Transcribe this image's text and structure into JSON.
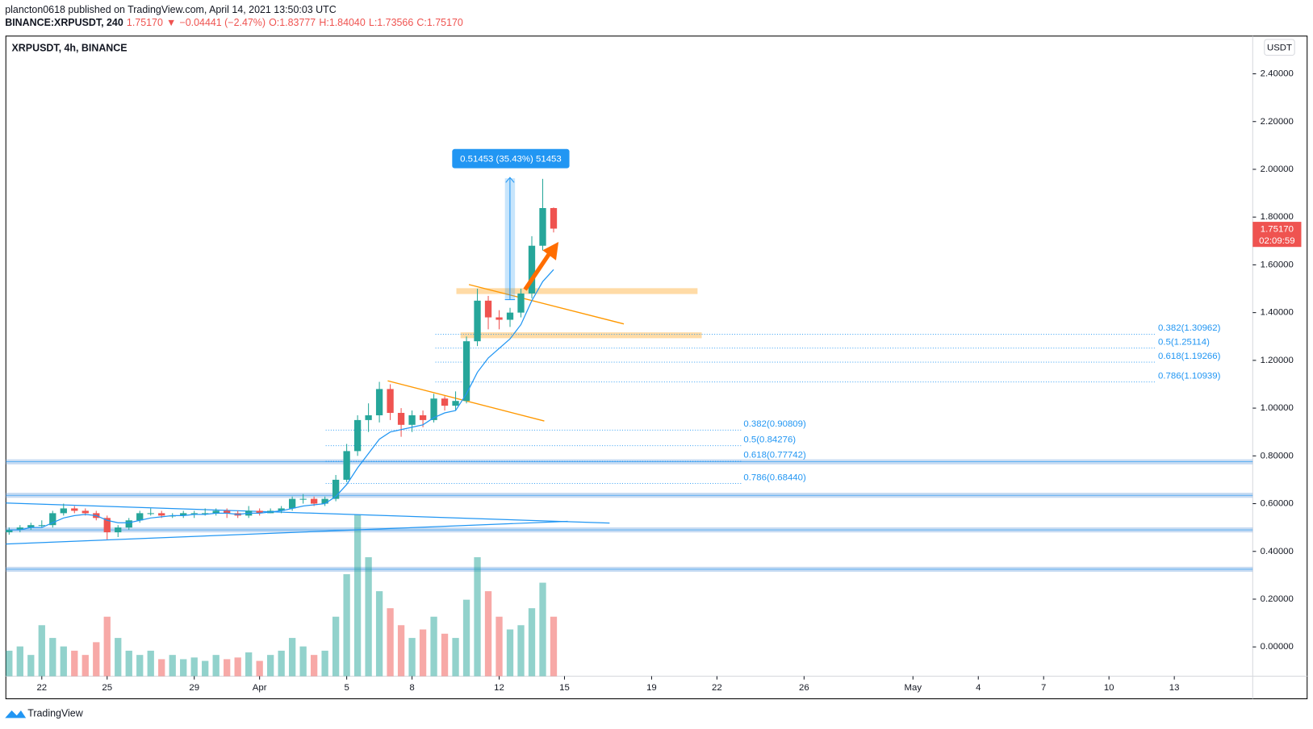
{
  "header": {
    "byline": "plancton0618 published on TradingView.com, April 14, 2021 13:50:03 UTC",
    "quote_parts": [
      "BINANCE:XRPUSDT, 240",
      "1.75170",
      "▼",
      "−0.04441 (−2.47%)",
      "O:1.83777",
      "H:1.84040",
      "L:1.73566",
      "C:1.75170"
    ]
  },
  "chart_data": {
    "type": "candlestick",
    "legend": "XRPUSDT, 4h, BINANCE",
    "currency": "USDT",
    "up_color": "#26a69a",
    "down_color": "#ef5350",
    "x": [
      -1.5,
      -1,
      -0.5,
      0,
      0.5,
      1,
      1.5,
      2,
      2.5,
      3,
      3.5,
      4,
      4.5,
      5,
      5.5,
      6,
      6.5,
      7,
      7.5,
      8,
      8.5,
      9,
      9.5,
      10,
      10.5,
      11,
      11.5,
      12,
      12.5,
      13,
      13.5,
      14,
      14.5,
      15,
      15.5,
      16,
      16.5,
      17,
      17.5,
      18,
      18.5,
      19,
      19.5,
      20,
      20.5,
      21,
      21.5,
      22,
      22.5,
      23,
      23.5
    ],
    "open": [
      0.48,
      0.49,
      0.5,
      0.51,
      0.51,
      0.56,
      0.58,
      0.57,
      0.56,
      0.54,
      0.48,
      0.5,
      0.53,
      0.56,
      0.56,
      0.55,
      0.55,
      0.56,
      0.56,
      0.56,
      0.57,
      0.56,
      0.55,
      0.57,
      0.56,
      0.57,
      0.58,
      0.62,
      0.62,
      0.6,
      0.62,
      0.7,
      0.82,
      0.95,
      0.97,
      1.08,
      0.98,
      0.93,
      0.97,
      0.95,
      1.04,
      1.01,
      1.03,
      1.28,
      1.45,
      1.38,
      1.37,
      1.4,
      1.48,
      1.68,
      1.83777
    ],
    "high": [
      0.5,
      0.51,
      0.52,
      0.53,
      0.57,
      0.6,
      0.59,
      0.58,
      0.57,
      0.55,
      0.51,
      0.54,
      0.57,
      0.58,
      0.57,
      0.56,
      0.57,
      0.57,
      0.58,
      0.58,
      0.58,
      0.57,
      0.59,
      0.58,
      0.58,
      0.59,
      0.63,
      0.64,
      0.63,
      0.63,
      0.72,
      0.85,
      0.97,
      1.02,
      1.11,
      1.1,
      1.0,
      0.99,
      0.99,
      1.06,
      1.05,
      1.07,
      1.3,
      1.5,
      1.47,
      1.41,
      1.42,
      1.5,
      1.72,
      1.96,
      1.8404
    ],
    "low": [
      0.47,
      0.48,
      0.49,
      0.5,
      0.5,
      0.55,
      0.56,
      0.55,
      0.53,
      0.45,
      0.46,
      0.49,
      0.52,
      0.55,
      0.54,
      0.54,
      0.54,
      0.54,
      0.55,
      0.55,
      0.54,
      0.54,
      0.54,
      0.55,
      0.56,
      0.56,
      0.57,
      0.6,
      0.59,
      0.59,
      0.61,
      0.69,
      0.8,
      0.9,
      0.94,
      0.95,
      0.88,
      0.9,
      0.92,
      0.94,
      0.99,
      0.99,
      1.02,
      1.26,
      1.33,
      1.33,
      1.34,
      1.38,
      1.46,
      1.66,
      1.73566
    ],
    "close": [
      0.49,
      0.5,
      0.51,
      0.51,
      0.56,
      0.58,
      0.57,
      0.56,
      0.54,
      0.48,
      0.5,
      0.53,
      0.56,
      0.56,
      0.55,
      0.55,
      0.56,
      0.56,
      0.56,
      0.57,
      0.56,
      0.55,
      0.57,
      0.56,
      0.57,
      0.58,
      0.62,
      0.62,
      0.6,
      0.62,
      0.7,
      0.82,
      0.95,
      0.97,
      1.08,
      0.98,
      0.93,
      0.97,
      0.95,
      1.04,
      1.01,
      1.03,
      1.28,
      1.45,
      1.38,
      1.37,
      1.4,
      1.48,
      1.68,
      1.83777,
      1.7517
    ],
    "ema": {
      "color": "#2196f3",
      "values": [
        0.49,
        0.49,
        0.5,
        0.5,
        0.52,
        0.54,
        0.55,
        0.555,
        0.55,
        0.53,
        0.52,
        0.52,
        0.53,
        0.54,
        0.545,
        0.55,
        0.55,
        0.555,
        0.555,
        0.56,
        0.56,
        0.555,
        0.56,
        0.56,
        0.565,
        0.57,
        0.58,
        0.59,
        0.595,
        0.6,
        0.63,
        0.68,
        0.75,
        0.81,
        0.87,
        0.9,
        0.91,
        0.92,
        0.93,
        0.96,
        0.98,
        0.99,
        1.06,
        1.15,
        1.21,
        1.25,
        1.29,
        1.35,
        1.45,
        1.53,
        1.58
      ]
    },
    "volumes": [
      30,
      35,
      25,
      60,
      45,
      35,
      30,
      25,
      40,
      70,
      45,
      30,
      25,
      30,
      20,
      25,
      20,
      22,
      18,
      25,
      20,
      22,
      28,
      18,
      25,
      30,
      45,
      35,
      25,
      30,
      70,
      120,
      190,
      140,
      100,
      80,
      60,
      45,
      55,
      70,
      50,
      45,
      90,
      140,
      100,
      70,
      55,
      60,
      80,
      110,
      70
    ],
    "xlim": [
      -1.65,
      55.6
    ],
    "xticks": [
      {
        "value": 0,
        "label": "22"
      },
      {
        "value": 3,
        "label": "25"
      },
      {
        "value": 7,
        "label": "29"
      },
      {
        "value": 10,
        "label": "Apr"
      },
      {
        "value": 14,
        "label": "5"
      },
      {
        "value": 17,
        "label": "8"
      },
      {
        "value": 21,
        "label": "12"
      },
      {
        "value": 24,
        "label": "15"
      },
      {
        "value": 28,
        "label": "19"
      },
      {
        "value": 31,
        "label": "22"
      },
      {
        "value": 35,
        "label": "26"
      },
      {
        "value": 40,
        "label": "May"
      },
      {
        "value": 43,
        "label": "4"
      },
      {
        "value": 46,
        "label": "7"
      },
      {
        "value": 49,
        "label": "10"
      },
      {
        "value": 52,
        "label": "13"
      }
    ],
    "ylim": [
      -0.1226,
      2.558
    ],
    "yticks": [
      {
        "value": 0,
        "label": "0.00000"
      },
      {
        "value": 0.2,
        "label": "0.20000"
      },
      {
        "value": 0.4,
        "label": "0.40000"
      },
      {
        "value": 0.6,
        "label": "0.60000"
      },
      {
        "value": 0.8,
        "label": "0.80000"
      },
      {
        "value": 1,
        "label": "1.00000"
      },
      {
        "value": 1.2,
        "label": "1.20000"
      },
      {
        "value": 1.4,
        "label": "1.40000"
      },
      {
        "value": 1.6,
        "label": "1.60000"
      },
      {
        "value": 1.8,
        "label": "1.80000"
      },
      {
        "value": 2,
        "label": "2.00000"
      },
      {
        "value": 2.2,
        "label": "2.20000"
      },
      {
        "value": 2.4,
        "label": "2.40000"
      }
    ],
    "fib_sets": [
      [
        {
          "label": "0.382(1.30962)",
          "price": 1.30962
        },
        {
          "label": "0.5(1.25114)",
          "price": 1.25114
        },
        {
          "label": "0.618(1.19266)",
          "price": 1.19266
        },
        {
          "label": "0.786(1.10939)",
          "price": 1.10939
        }
      ],
      [
        {
          "label": "0.382(0.90809)",
          "price": 0.90809
        },
        {
          "label": "0.5(0.84276)",
          "price": 0.84276
        },
        {
          "label": "0.618(0.77742)",
          "price": 0.77742
        },
        {
          "label": "0.786(0.68440)",
          "price": 0.6844
        }
      ]
    ],
    "support_levels": [
      0.775,
      0.635,
      0.49,
      0.325
    ],
    "resistance_zones": [
      1.49,
      1.305
    ],
    "measure_label": "0.51453 (35.43%) 51453",
    "price_tag": {
      "price": "1.75170",
      "countdown": "02:09:59"
    }
  },
  "footer": {
    "brand": "TradingView"
  }
}
